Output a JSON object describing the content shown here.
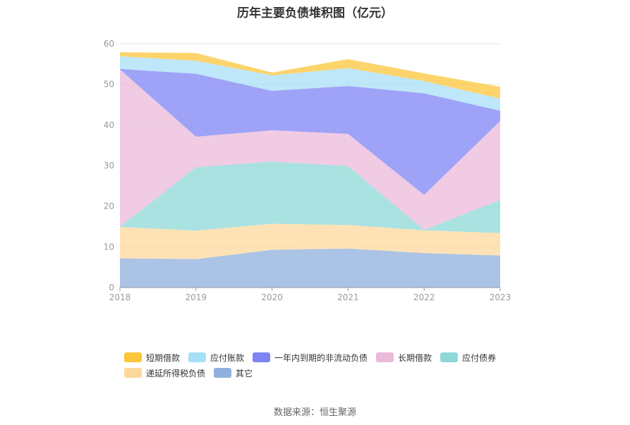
{
  "chart_data": {
    "type": "area",
    "stacked": true,
    "title": "历年主要负债堆积图（亿元）",
    "x": [
      "2018",
      "2019",
      "2020",
      "2021",
      "2022",
      "2023"
    ],
    "ylim": [
      0,
      60
    ],
    "yticks": [
      "0",
      "10",
      "20",
      "30",
      "40",
      "50",
      "60"
    ],
    "grid": true,
    "legend_position": "bottom",
    "series": [
      {
        "name": "其它",
        "color": "#8fb0dc",
        "values": [
          7.2,
          7.0,
          9.3,
          9.6,
          8.5,
          7.9
        ]
      },
      {
        "name": "递延所得税负债",
        "color": "#fdd89c",
        "values": [
          7.7,
          7.0,
          6.4,
          5.8,
          5.6,
          5.5
        ]
      },
      {
        "name": "应付债券",
        "color": "#8ed8d8",
        "values": [
          0.1,
          15.6,
          15.3,
          14.5,
          0.1,
          8.2
        ]
      },
      {
        "name": "长期借款",
        "color": "#ebb9d9",
        "values": [
          38.7,
          7.5,
          7.7,
          7.9,
          8.6,
          19.4
        ]
      },
      {
        "name": "一年内到期的非流动负债",
        "color": "#7f84f4",
        "values": [
          0.1,
          15.5,
          9.7,
          11.8,
          25.0,
          2.5
        ]
      },
      {
        "name": "应付账款",
        "color": "#a8dff8",
        "values": [
          3.1,
          3.2,
          3.8,
          4.4,
          3.0,
          3.0
        ]
      },
      {
        "name": "短期借款",
        "color": "#fcc63a",
        "values": [
          1.0,
          1.9,
          0.7,
          2.2,
          1.9,
          2.9
        ]
      }
    ],
    "legend_order": [
      "短期借款",
      "应付账款",
      "一年内到期的非流动负债",
      "长期借款",
      "应付债券",
      "递延所得税负债",
      "其它"
    ]
  },
  "source_text": "数据来源：恒生聚源"
}
